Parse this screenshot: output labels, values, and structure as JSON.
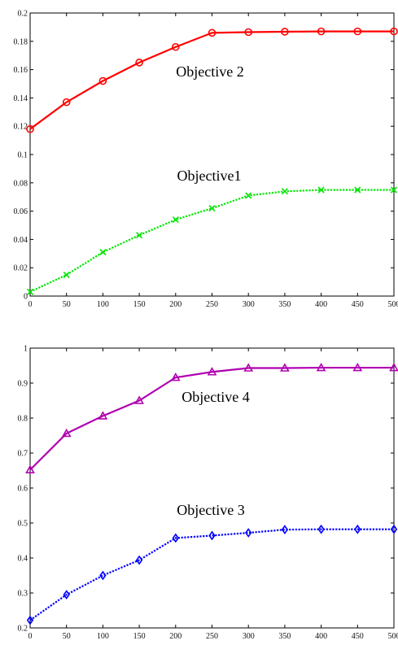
{
  "chart_data": [
    {
      "type": "line",
      "x": [
        0,
        50,
        100,
        150,
        200,
        250,
        300,
        350,
        400,
        450,
        500
      ],
      "xlim": [
        0,
        500
      ],
      "ylim": [
        0,
        0.2
      ],
      "xticks": [
        "0",
        "50",
        "100",
        "150",
        "200",
        "250",
        "300",
        "350",
        "400",
        "450",
        "500"
      ],
      "yticks": [
        "0",
        "0.02",
        "0.04",
        "0.06",
        "0.08",
        "0.1",
        "0.12",
        "0.14",
        "0.16",
        "0.18",
        "0.2"
      ],
      "grid": false,
      "series": [
        {
          "annotation": "Objective 2",
          "color": "#ff0000",
          "marker": "circle",
          "line_style": "solid",
          "values": [
            0.118,
            0.137,
            0.152,
            0.165,
            0.176,
            0.186,
            0.1865,
            0.1868,
            0.187,
            0.187,
            0.187
          ]
        },
        {
          "annotation": "Objective1",
          "color": "#00e600",
          "marker": "x",
          "line_style": "dotted",
          "values": [
            0.003,
            0.015,
            0.031,
            0.043,
            0.054,
            0.062,
            0.071,
            0.074,
            0.075,
            0.075,
            0.075
          ]
        }
      ]
    },
    {
      "type": "line",
      "x": [
        0,
        50,
        100,
        150,
        200,
        250,
        300,
        350,
        400,
        450,
        500
      ],
      "xlim": [
        0,
        500
      ],
      "ylim": [
        0.2,
        1
      ],
      "xticks": [
        "0",
        "50",
        "100",
        "150",
        "200",
        "250",
        "300",
        "350",
        "400",
        "450",
        "500"
      ],
      "yticks": [
        "0.2",
        "0.3",
        "0.4",
        "0.5",
        "0.6",
        "0.7",
        "0.8",
        "0.9",
        "1"
      ],
      "grid": false,
      "series": [
        {
          "annotation": "Objective 4",
          "color": "#b000b0",
          "marker": "triangle",
          "line_style": "solid",
          "values": [
            0.652,
            0.756,
            0.806,
            0.85,
            0.916,
            0.932,
            0.943,
            0.943,
            0.944,
            0.944,
            0.944
          ]
        },
        {
          "annotation": "Objective 3",
          "color": "#0000ff",
          "marker": "diamond",
          "line_style": "dotted",
          "values": [
            0.222,
            0.295,
            0.35,
            0.394,
            0.457,
            0.464,
            0.472,
            0.481,
            0.482,
            0.482,
            0.482
          ]
        }
      ]
    }
  ]
}
